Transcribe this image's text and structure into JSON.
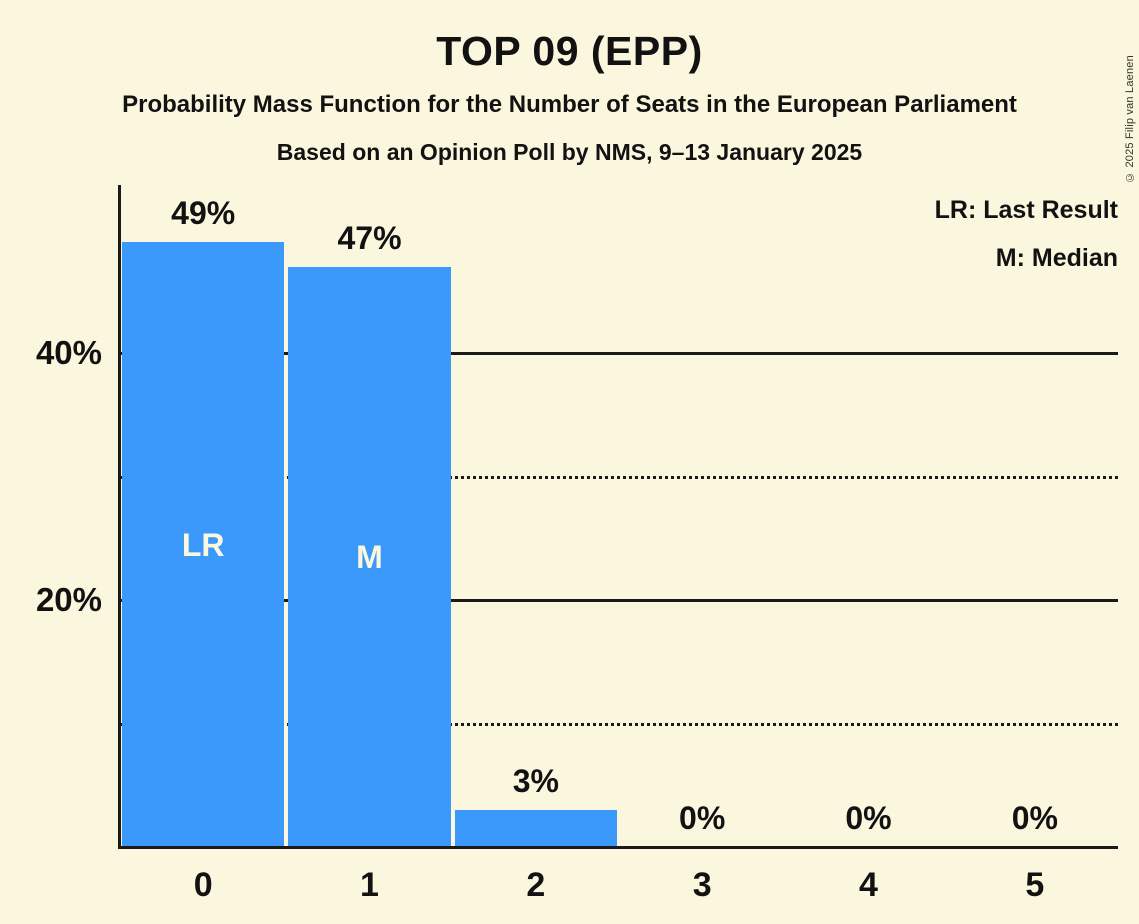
{
  "title": "TOP 09 (EPP)",
  "subtitles": [
    "Probability Mass Function for the Number of Seats in the European Parliament",
    "Based on an Opinion Poll by NMS, 9–13 January 2025"
  ],
  "legend": {
    "last_result": "LR: Last Result",
    "median": "M: Median"
  },
  "copyright": "© 2025 Filip van Laenen",
  "colors": {
    "background": "#FBF7DE",
    "bar": "#3A99FA",
    "text": "#121212",
    "grid": "#1A1A1A",
    "bar_label": "#FBF7DE"
  },
  "chart_data": {
    "type": "bar",
    "title": "TOP 09 (EPP)",
    "categories": [
      "0",
      "1",
      "2",
      "3",
      "4",
      "5"
    ],
    "values": [
      49,
      47,
      3,
      0,
      0,
      0
    ],
    "value_labels": [
      "49%",
      "47%",
      "3%",
      "0%",
      "0%",
      "0%"
    ],
    "bar_annotations": [
      {
        "index": 0,
        "text": "LR"
      },
      {
        "index": 1,
        "text": "M"
      }
    ],
    "xlabel": "",
    "ylabel": "",
    "ylim": [
      0,
      53.5
    ],
    "yticks": [
      {
        "pct": 40,
        "label": "40%",
        "style": "solid"
      },
      {
        "pct": 30,
        "label": "",
        "style": "dotted"
      },
      {
        "pct": 20,
        "label": "20%",
        "style": "solid"
      },
      {
        "pct": 10,
        "label": "",
        "style": "dotted"
      }
    ],
    "legend_notes": [
      "LR: Last Result",
      "M: Median"
    ],
    "grid": true,
    "legend_position": "top-right"
  }
}
